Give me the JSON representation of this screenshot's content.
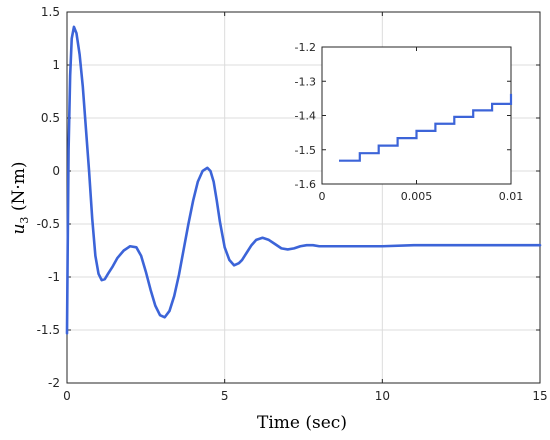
{
  "chart_data": [
    {
      "type": "line",
      "xlabel": "Time (sec)",
      "ylabel_main": "u",
      "ylabel_sub": "3",
      "ylabel_unit": " (N·m)",
      "xlim": [
        0,
        15
      ],
      "ylim": [
        -2,
        1.5
      ],
      "xticks": [
        0,
        5,
        10,
        15
      ],
      "yticks": [
        1.5,
        1,
        0.5,
        0,
        -0.5,
        -1,
        -1.5,
        -2
      ],
      "xtick_labels": [
        "0",
        "5",
        "10",
        "15"
      ],
      "ytick_labels": [
        "1.5",
        "1",
        "0.5",
        "0",
        "-0.5",
        "-1",
        "-1.5",
        "-2"
      ],
      "grid": true,
      "color": "#3c64d8",
      "series": [
        {
          "x": [
            0,
            0.02,
            0.05,
            0.1,
            0.15,
            0.22,
            0.3,
            0.4,
            0.5,
            0.6,
            0.7,
            0.8,
            0.9,
            1.0,
            1.1,
            1.2,
            1.3,
            1.45,
            1.6,
            1.8,
            2.0,
            2.2,
            2.35,
            2.5,
            2.65,
            2.8,
            2.95,
            3.1,
            3.25,
            3.4,
            3.55,
            3.7,
            3.85,
            4.0,
            4.15,
            4.3,
            4.45,
            4.55,
            4.65,
            4.75,
            4.85,
            5.0,
            5.15,
            5.3,
            5.45,
            5.55,
            5.7,
            5.85,
            6.0,
            6.2,
            6.4,
            6.6,
            6.8,
            7.0,
            7.2,
            7.4,
            7.6,
            7.8,
            8.0,
            8.3,
            8.6,
            9.0,
            9.5,
            10,
            11,
            12,
            13,
            14,
            15
          ],
          "y": [
            -1.53,
            -0.8,
            0.2,
            0.9,
            1.25,
            1.36,
            1.3,
            1.1,
            0.8,
            0.4,
            0.0,
            -0.45,
            -0.8,
            -0.97,
            -1.03,
            -1.02,
            -0.97,
            -0.9,
            -0.82,
            -0.75,
            -0.71,
            -0.72,
            -0.8,
            -0.95,
            -1.12,
            -1.27,
            -1.36,
            -1.38,
            -1.32,
            -1.18,
            -0.98,
            -0.74,
            -0.5,
            -0.28,
            -0.1,
            0.0,
            0.03,
            0.0,
            -0.1,
            -0.28,
            -0.48,
            -0.72,
            -0.84,
            -0.89,
            -0.87,
            -0.84,
            -0.77,
            -0.7,
            -0.65,
            -0.63,
            -0.65,
            -0.69,
            -0.73,
            -0.74,
            -0.73,
            -0.71,
            -0.7,
            -0.7,
            -0.71,
            -0.71,
            -0.71,
            -0.71,
            -0.71,
            -0.71,
            -0.7,
            -0.7,
            -0.7,
            -0.7,
            -0.7
          ]
        }
      ]
    },
    {
      "type": "line",
      "xlim": [
        0,
        0.01
      ],
      "ylim": [
        -1.6,
        -1.2
      ],
      "xticks": [
        0,
        0.005,
        0.01
      ],
      "yticks": [
        -1.2,
        -1.3,
        -1.4,
        -1.5,
        -1.6
      ],
      "xtick_labels": [
        "0",
        "0.005",
        "0.01"
      ],
      "ytick_labels": [
        "-1.2",
        "-1.3",
        "-1.4",
        "-1.5",
        "-1.6"
      ],
      "grid": false,
      "color": "#3c64d8",
      "series": [
        {
          "x": [
            0.001,
            0.002,
            0.003,
            0.004,
            0.005,
            0.006,
            0.007,
            0.008,
            0.009,
            0.01
          ],
          "y": [
            -1.532,
            -1.51,
            -1.488,
            -1.466,
            -1.445,
            -1.424,
            -1.404,
            -1.385,
            -1.366,
            -1.347
          ]
        }
      ]
    }
  ]
}
